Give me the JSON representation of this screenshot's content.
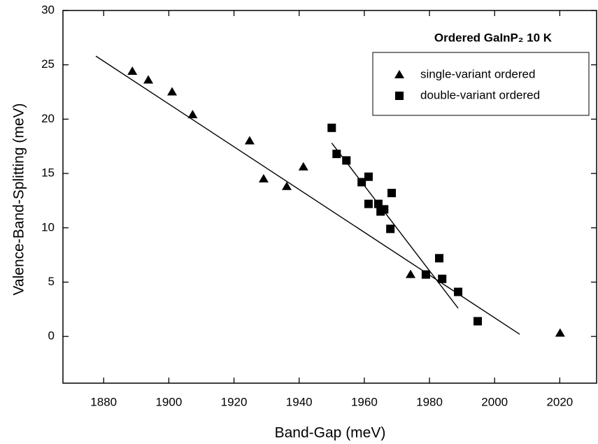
{
  "chart_data": {
    "type": "scatter",
    "xlabel": "Band-Gap (meV)",
    "ylabel": "Valence-Band-Splitting (meV)",
    "annotation": "Ordered GaInP₂  10 K",
    "xlim": [
      1867.5,
      2031.3
    ],
    "ylim": [
      -4.3,
      30
    ],
    "xticks": [
      1880,
      1900,
      1920,
      1940,
      1960,
      1980,
      2000,
      2020
    ],
    "yticks": [
      0,
      5,
      10,
      15,
      20,
      25,
      30
    ],
    "legend": "upper right",
    "series": [
      {
        "name": "single-variant ordered",
        "marker": "triangle",
        "color": "#000000",
        "x": [
          1888.8,
          1893.7,
          1901.0,
          1907.3,
          1924.8,
          1929.1,
          1936.2,
          1941.3,
          1974.2,
          2020.1
        ],
        "values": [
          24.4,
          23.6,
          22.5,
          20.4,
          18.0,
          14.5,
          13.8,
          15.6,
          5.7,
          0.3
        ]
      },
      {
        "name": "double-variant ordered",
        "marker": "square",
        "color": "#000000",
        "x": [
          1950.0,
          1951.5,
          1954.5,
          1959.2,
          1961.3,
          1961.3,
          1964.3,
          1965.0,
          1966.1,
          1968.0,
          1968.4,
          1983.0,
          1978.9,
          1983.9,
          1988.8,
          1994.8
        ],
        "values": [
          19.2,
          16.8,
          16.2,
          14.2,
          14.7,
          12.2,
          12.2,
          11.5,
          11.7,
          9.9,
          13.2,
          7.2,
          5.7,
          5.3,
          4.1,
          1.4
        ]
      }
    ],
    "fits": [
      {
        "x": [
          1877.6,
          2007.7
        ],
        "values": [
          25.8,
          0.2
        ],
        "color": "#000000"
      },
      {
        "x": [
          1950.0,
          1988.8
        ],
        "values": [
          17.8,
          2.6
        ],
        "color": "#000000"
      }
    ]
  }
}
